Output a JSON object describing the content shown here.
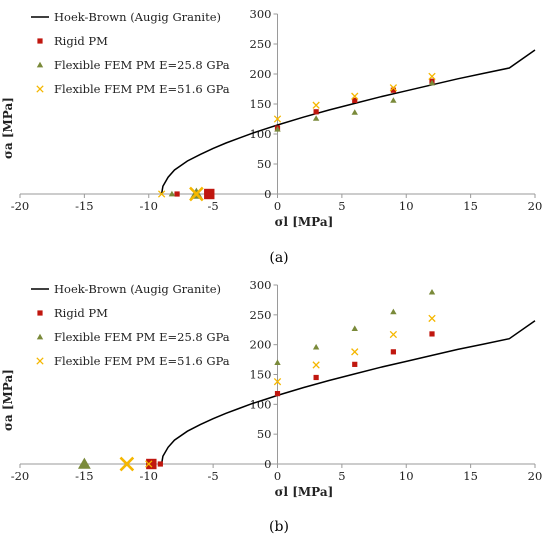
{
  "colors": {
    "hb": "#000000",
    "rigid": "#c0170f",
    "flex25": "#7a8a3a",
    "flex51": "#f5b700",
    "axis": "#9a9a9a"
  },
  "legend": {
    "hb": "Hoek-Brown (Augig Granite)",
    "rigid": "Rigid PM",
    "flex25": "Flexible FEM PM E=25.8 GPa",
    "flex51": "Flexible FEM PM E=51.6 GPa"
  },
  "chart_data": [
    {
      "type": "scatter",
      "caption": "(a)",
      "xlabel": "σl [MPa]",
      "ylabel": "σa [MPa]",
      "xlim": [
        -20,
        20
      ],
      "ylim": [
        0,
        300
      ],
      "xticks": [
        -20,
        -15,
        -10,
        -5,
        0,
        5,
        10,
        15,
        20
      ],
      "yticks": [
        50,
        100,
        150,
        200,
        250,
        300
      ],
      "grid": false,
      "legend_position": "top-left",
      "curve": {
        "name": "Hoek-Brown (Augig Granite)",
        "x": [
          -9,
          -8.9,
          -8.5,
          -8,
          -7,
          -6,
          -5,
          -4,
          -3,
          -2,
          -1,
          0,
          2,
          4,
          6,
          8,
          10,
          12,
          14,
          16,
          18,
          20
        ],
        "y": [
          0,
          13,
          28,
          40,
          55,
          66,
          76,
          85,
          93,
          101,
          108,
          115,
          128,
          140,
          151,
          162,
          172,
          182,
          192,
          201,
          210,
          240
        ]
      },
      "series": [
        {
          "name": "Rigid PM",
          "marker": "square",
          "x": [
            -7.8,
            -5.3,
            0,
            3,
            6,
            9,
            12
          ],
          "y": [
            0,
            0,
            110,
            137,
            156,
            173,
            188
          ],
          "sizes": [
            1,
            2,
            1,
            1,
            1,
            1,
            1
          ]
        },
        {
          "name": "Flexible FEM PM E=25.8 GPa",
          "marker": "triangle",
          "x": [
            -8.2,
            -6.3,
            0,
            3,
            6,
            9,
            12
          ],
          "y": [
            0,
            0,
            108,
            126,
            136,
            156,
            185
          ],
          "sizes": [
            1,
            2,
            1,
            1,
            1,
            1,
            1
          ]
        },
        {
          "name": "Flexible FEM PM E=51.6 GPa",
          "marker": "x",
          "x": [
            -9,
            -6.3,
            0,
            3,
            6,
            9,
            12
          ],
          "y": [
            0,
            0,
            125,
            148,
            163,
            177,
            196
          ],
          "sizes": [
            1,
            2,
            1,
            1,
            1,
            1,
            1
          ]
        }
      ]
    },
    {
      "type": "scatter",
      "caption": "(b)",
      "xlabel": "σl [MPa]",
      "ylabel": "σa [MPa]",
      "xlim": [
        -20,
        20
      ],
      "ylim": [
        0,
        300
      ],
      "xticks": [
        -20,
        -15,
        -10,
        -5,
        0,
        5,
        10,
        15,
        20
      ],
      "yticks": [
        50,
        100,
        150,
        200,
        250,
        300
      ],
      "grid": false,
      "legend_position": "top-left",
      "curve": {
        "name": "Hoek-Brown (Augig Granite)",
        "x": [
          -9,
          -8.9,
          -8.5,
          -8,
          -7,
          -6,
          -5,
          -4,
          -3,
          -2,
          -1,
          0,
          2,
          4,
          6,
          8,
          10,
          12,
          14,
          16,
          18,
          20
        ],
        "y": [
          0,
          13,
          28,
          40,
          55,
          66,
          76,
          85,
          93,
          101,
          108,
          115,
          128,
          140,
          151,
          162,
          172,
          182,
          192,
          201,
          210,
          240
        ]
      },
      "series": [
        {
          "name": "Rigid PM",
          "marker": "square",
          "x": [
            -9.8,
            -9.1,
            0,
            3,
            6,
            9,
            12
          ],
          "y": [
            0,
            0,
            118,
            145,
            167,
            188,
            218
          ],
          "sizes": [
            2,
            1,
            1,
            1,
            1,
            1,
            1
          ]
        },
        {
          "name": "Flexible FEM PM E=25.8 GPa",
          "marker": "triangle",
          "x": [
            -15,
            0,
            3,
            6,
            9,
            12
          ],
          "y": [
            0,
            170,
            196,
            227,
            255,
            288
          ],
          "sizes": [
            2,
            1,
            1,
            1,
            1,
            1
          ]
        },
        {
          "name": "Flexible FEM PM E=51.6 GPa",
          "marker": "x",
          "x": [
            -11.7,
            -10,
            0,
            3,
            6,
            9,
            12
          ],
          "y": [
            0,
            0,
            138,
            166,
            188,
            217,
            244
          ],
          "sizes": [
            2,
            1,
            1,
            1,
            1,
            1,
            1
          ]
        }
      ]
    }
  ]
}
